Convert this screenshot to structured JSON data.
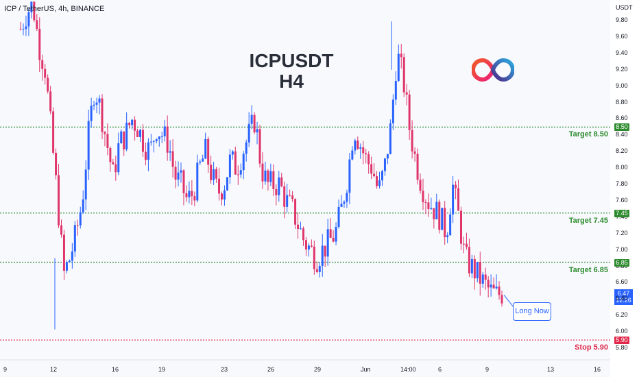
{
  "header": {
    "symbol": "ICP / TetherUS, 4h, BINANCE"
  },
  "title": {
    "line1": "ICPUSDT",
    "line2": "H4"
  },
  "currency": "USDT",
  "levels": [
    {
      "label": "Target 8.50",
      "value": 8.5,
      "tag": "8.50",
      "color": "#2e8b2e"
    },
    {
      "label": "Target 7.45",
      "value": 7.45,
      "tag": "7.45",
      "color": "#2e8b2e"
    },
    {
      "label": "Target 6.85",
      "value": 6.85,
      "tag": "6.85",
      "color": "#2e8b2e"
    },
    {
      "label": "Stop 5.90",
      "value": 5.9,
      "tag": "5.90",
      "color": "#e0294a"
    }
  ],
  "current": {
    "price": "6.47",
    "time": "12:26"
  },
  "annotation": "Long Now",
  "logo_icon": "internet-computer-infinity-logo",
  "colors": {
    "up": "#2962ff",
    "down": "#e0356a",
    "target": "#2e8b2e",
    "stop": "#e0294a"
  },
  "chart_data": {
    "type": "candlestick",
    "y_ticks": [
      "9.80",
      "9.60",
      "9.40",
      "9.20",
      "9.00",
      "8.80",
      "8.60",
      "8.40",
      "8.20",
      "8.00",
      "7.80",
      "7.60",
      "7.40",
      "7.20",
      "7.00",
      "6.80",
      "6.60",
      "6.40",
      "6.20",
      "6.00",
      "5.80"
    ],
    "x_ticks": [
      "9",
      "12",
      "16",
      "19",
      "23",
      "26",
      "29",
      "Jun",
      "14:00",
      "6",
      "9",
      "13",
      "16"
    ],
    "ylim": [
      5.72,
      9.98
    ],
    "close_path": [
      9.7,
      9.9,
      10.0,
      9.5,
      9.2,
      8.4,
      7.6,
      6.7,
      6.9,
      7.2,
      7.6,
      8.4,
      9.0,
      8.7,
      8.3,
      7.9,
      8.3,
      8.4,
      8.6,
      8.5,
      8.3,
      8.2,
      8.5,
      8.4,
      8.3,
      7.9,
      7.8,
      7.6,
      7.7,
      8.0,
      8.2,
      7.9,
      7.7,
      7.8,
      8.1,
      8.0,
      8.2,
      8.4,
      8.6,
      8.0,
      7.8,
      7.8,
      7.8,
      7.6,
      7.5,
      7.3,
      7.1,
      7.0,
      6.9,
      7.0,
      7.1,
      7.2,
      7.5,
      7.9,
      8.5,
      8.3,
      8.1,
      8.0,
      7.7,
      8.0,
      8.5,
      9.4,
      9.1,
      8.5,
      8.1,
      7.8,
      7.6,
      7.5,
      7.4,
      7.2,
      7.8,
      7.4,
      6.9,
      6.8,
      6.7,
      6.6,
      6.5,
      6.45,
      6.47
    ],
    "wicks": [
      {
        "date": "12",
        "low": 6.03
      },
      {
        "date": "Jun",
        "high": 9.79
      }
    ],
    "grid": false
  }
}
